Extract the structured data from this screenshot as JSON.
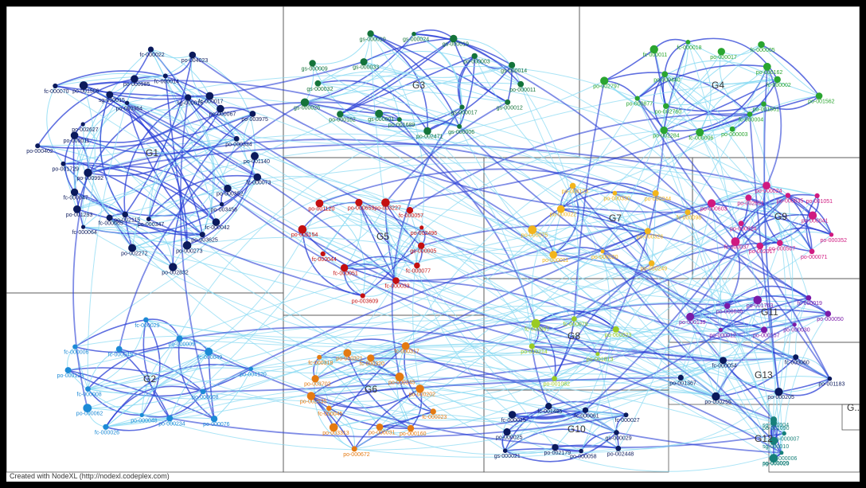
{
  "footer": "Created with NodeXL (http://nodexl.codeplex.com)",
  "colors": {
    "G1": "#0b1a5c",
    "G2": "#1c8ad6",
    "G3": "#14733a",
    "G4": "#2aa530",
    "G5": "#c41010",
    "G6": "#e47a12",
    "G7": "#f2b51b",
    "G8": "#9acb24",
    "G9": "#d01a80",
    "G10": "#0b1a5c",
    "G11": "#7a1aa8",
    "G12": "#17807a",
    "G13": "#0b1a5c",
    "edge_light": "#86d9f2",
    "edge_dark": "#2a3fd6"
  },
  "groups": [
    {
      "name": "G1",
      "color_key": "G1",
      "labels": [
        "po-001140",
        "fc-000073",
        "po-000352",
        "po-003456",
        "fc-000042",
        "po-003625",
        "po-000273",
        "po-002832",
        "po-000347",
        "po-002272",
        "po-002115",
        "fc-000065",
        "fc-000064",
        "po-001293",
        "fc-000047",
        "po-000992",
        "po-001729",
        "po-000402",
        "po-000011",
        "po-002627",
        "fc-000070",
        "po-001506",
        "sg-000015",
        "po-000364",
        "po-000985",
        "fc-000022",
        "fc-000014",
        "po-004023",
        "sg-000016",
        "fc-000017",
        "po-000067",
        "po-003975",
        "po-000334"
      ]
    },
    {
      "name": "G2",
      "color_key": "G2",
      "labels": [
        "po-000076",
        "po-000234",
        "po-000048",
        "fc-000026",
        "po-000062",
        "fc-000008",
        "po-000123",
        "fc-000006",
        "fc-000045",
        "fc-000029",
        "po-000009",
        "fc-000049",
        "po-004120",
        "po-000008"
      ]
    },
    {
      "name": "G3",
      "color_key": "G3",
      "labels": [
        "po-002471",
        "po-001689",
        "gs-000001",
        "po-000162",
        "gs-000026",
        "gs-000032",
        "gs-000009",
        "gs-000033",
        "gs-000010",
        "gs-000024",
        "gs-000019",
        "po-000003",
        "gs-000014",
        "po-000011",
        "gs-000012",
        "gs-000017",
        "gs-000006"
      ]
    },
    {
      "name": "G4",
      "color_key": "G4",
      "labels": [
        "po-002284",
        "po-002760",
        "po-000877",
        "po-002797",
        "po-000440",
        "fc-000011",
        "fc-000018",
        "po-000017",
        "fc-000005",
        "po-000162",
        "fc-000002",
        "po-001562",
        "po-001561",
        "fc-000004",
        "po-000003",
        "fc-000006"
      ]
    },
    {
      "name": "G5",
      "color_key": "G5",
      "labels": [
        "fc-000044",
        "po-000154",
        "po-001120",
        "po-000659",
        "po-003227",
        "fc-000057",
        "po-002496",
        "gs-000005",
        "fc-000077",
        "fc-000033",
        "po-003609",
        "fc-000051"
      ]
    },
    {
      "name": "G6",
      "color_key": "G6",
      "labels": [
        "po-003702",
        "fc-000318",
        "po-000321",
        "fc-000320",
        "fc-000317",
        "po-000345",
        "po-000202",
        "fc-000023",
        "po-000160",
        "po-000031",
        "po-000672",
        "po-003313",
        "fc-000045",
        "po-002535"
      ]
    },
    {
      "name": "G7",
      "color_key": "G7",
      "labels": [
        "po-004123",
        "po-000330",
        "po-000244",
        "fc-000098",
        "po-000326",
        "po-000249",
        "po-000020",
        "po-000011",
        "po-000075",
        "po-000022"
      ]
    },
    {
      "name": "G8",
      "color_key": "G8",
      "labels": [
        "fc-000079",
        "po-000023",
        "po-001813",
        "po-001082",
        "po-000214",
        "fc-000067"
      ]
    },
    {
      "name": "G9",
      "color_key": "G9",
      "labels": [
        "po-001051",
        "po-000041",
        "po-000352",
        "po-000071",
        "po-000507",
        "po-002017",
        "fc-000037",
        "po-000824",
        "po-000603",
        "po-002651",
        "po-000024",
        "po-000035"
      ]
    },
    {
      "name": "G10",
      "color_key": "G10",
      "labels": [
        "gs-000029",
        "po-002448",
        "po-000058",
        "po-002179",
        "gs-000021",
        "po-000025",
        "fc-000015",
        "fc-001485",
        "fc-000061",
        "fc-000027"
      ]
    },
    {
      "name": "G11",
      "color_key": "G11",
      "labels": [
        "po-000030",
        "po-000157",
        "po-000012",
        "po-000139",
        "po-000646",
        "po-001763",
        "fc-000019",
        "po-000050"
      ]
    },
    {
      "name": "G12",
      "color_key": "G12",
      "labels": [
        "po-003020",
        "sg-000009",
        "sg-000010",
        "sg-000004",
        "po-001090",
        "sg-000007",
        "po-000006"
      ]
    },
    {
      "name": "G13",
      "color_key": "G13",
      "labels": [
        "po-000255",
        "po-001367",
        "fc-000054",
        "fc-000060",
        "po-001183",
        "po-000205"
      ]
    },
    {
      "name": "G...",
      "color_key": "G13",
      "labels": []
    }
  ]
}
